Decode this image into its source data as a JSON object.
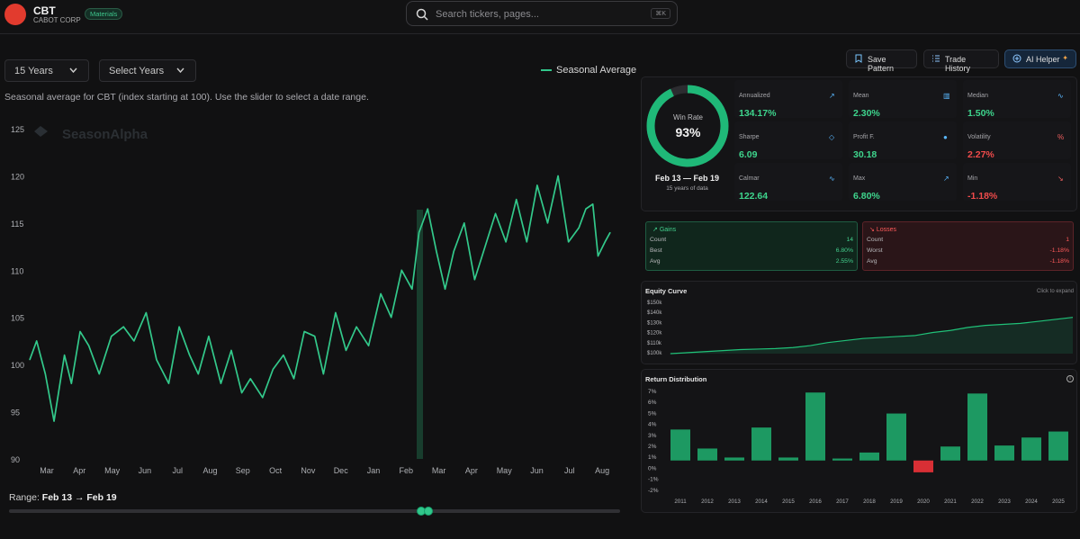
{
  "header": {
    "ticker": "CBT",
    "company": "CABOT CORP",
    "sector": "Materials",
    "search_placeholder": "Search tickers, pages...",
    "search_shortcut": "⌘K"
  },
  "controls": {
    "years_selected": "15 Years",
    "select_years": "Select Years",
    "legend": "Seasonal Average",
    "description": "Seasonal average for CBT (index starting at 100). Use the slider to select a date range."
  },
  "actions": {
    "save_pattern": "Save Pattern",
    "trade_history": "Trade History",
    "ai_helper": "AI Helper"
  },
  "chart_data": {
    "type": "line",
    "title": "Seasonal Average",
    "watermark": "SeasonAlpha",
    "xlabel": "",
    "ylabel": "",
    "ylim": [
      90,
      125
    ],
    "yticks": [
      90,
      95,
      100,
      105,
      110,
      115,
      120,
      125
    ],
    "x_ticks": [
      "Mar",
      "Apr",
      "May",
      "Jun",
      "Jul",
      "Aug",
      "Sep",
      "Oct",
      "Nov",
      "Dec",
      "Jan",
      "Feb",
      "Mar",
      "Apr",
      "May",
      "Jun",
      "Jul",
      "Aug"
    ],
    "x": [
      0,
      0.2,
      0.45,
      0.7,
      1.0,
      1.2,
      1.45,
      1.7,
      2.0,
      2.35,
      2.7,
      3.0,
      3.35,
      3.65,
      4.0,
      4.3,
      4.6,
      4.85,
      5.15,
      5.5,
      5.8,
      6.1,
      6.35,
      6.7,
      7.0,
      7.3,
      7.6,
      7.9,
      8.2,
      8.45,
      8.8,
      9.1,
      9.4,
      9.75,
      10.1,
      10.4,
      10.7,
      11.0,
      11.2,
      11.45,
      11.7,
      11.95,
      12.2,
      12.5,
      12.8,
      13.1,
      13.4,
      13.7,
      14.0,
      14.3,
      14.6,
      14.9,
      15.2,
      15.5,
      15.8,
      16.0,
      16.2,
      16.35,
      16.55,
      16.7
    ],
    "values": [
      100.5,
      102.5,
      99,
      94,
      101,
      98,
      103.5,
      102,
      99,
      103,
      104,
      102.5,
      105.5,
      100.5,
      98,
      104,
      101,
      99,
      103,
      98,
      101.5,
      97,
      98.5,
      96.5,
      99.5,
      101,
      98.5,
      103.5,
      103,
      99,
      105.5,
      101.5,
      104,
      102,
      107.5,
      105,
      110,
      108,
      114,
      116.5,
      112,
      108,
      112,
      115,
      109,
      112.5,
      116,
      113,
      117.5,
      113,
      119,
      115,
      120,
      113,
      114.5,
      116.5,
      117,
      111.5,
      113,
      114
    ],
    "highlight": "Feb 13 → Feb 19"
  },
  "range": {
    "label": "Range:",
    "value": "Feb 13 → Feb 19",
    "start_fraction": 0.675,
    "end_fraction": 0.686
  },
  "summary": {
    "win_rate_label": "Win Rate",
    "win_rate": "93%",
    "win_rate_fraction": 0.93,
    "date_range": "Feb 13 — Feb 19",
    "years_data": "15 years of data"
  },
  "metrics": [
    {
      "label": "Annualized",
      "value": "134.17%",
      "icon": "trend-up-icon",
      "color": "#3ed58d"
    },
    {
      "label": "Mean",
      "value": "2.30%",
      "icon": "bar-chart-icon",
      "color": "#3ed58d"
    },
    {
      "label": "Median",
      "value": "1.50%",
      "icon": "pulse-icon",
      "color": "#3ed58d"
    },
    {
      "label": "Sharpe",
      "value": "6.09",
      "icon": "shield-icon",
      "color": "#3ed58d"
    },
    {
      "label": "Profit F.",
      "value": "30.18",
      "icon": "target-icon",
      "color": "#3ed58d"
    },
    {
      "label": "Volatility",
      "value": "2.27%",
      "icon": "percent-icon",
      "color": "#f04b4b"
    },
    {
      "label": "Calmar",
      "value": "122.64",
      "icon": "activity-icon",
      "color": "#3ed58d"
    },
    {
      "label": "Max",
      "value": "6.80%",
      "icon": "max-trend-icon",
      "color": "#3ed58d"
    },
    {
      "label": "Min",
      "value": "-1.18%",
      "icon": "min-trend-icon",
      "color": "#f04b4b"
    }
  ],
  "gains": {
    "title": "Gains",
    "rows": [
      {
        "label": "Count",
        "value": "14"
      },
      {
        "label": "Best",
        "value": "6.80%"
      },
      {
        "label": "Avg",
        "value": "2.55%"
      }
    ]
  },
  "losses": {
    "title": "Losses",
    "rows": [
      {
        "label": "Count",
        "value": "1"
      },
      {
        "label": "Worst",
        "value": "-1.18%"
      },
      {
        "label": "Avg",
        "value": "-1.18%"
      }
    ]
  },
  "equity": {
    "title": "Equity Curve",
    "expand": "Click to expand",
    "yticks": [
      "$150k",
      "$140k",
      "$130k",
      "$120k",
      "$110k",
      "$100k"
    ],
    "chart_data": {
      "type": "area",
      "values": [
        100,
        101,
        102,
        103,
        104,
        104.5,
        105,
        106,
        108,
        111,
        113,
        115,
        116,
        117,
        118,
        121,
        123,
        126,
        128,
        129,
        130,
        132,
        134,
        136
      ],
      "ylim": [
        100,
        150
      ]
    }
  },
  "returns": {
    "title": "Return Distribution",
    "chart_data": {
      "type": "bar",
      "categories": [
        "2011",
        "2012",
        "2013",
        "2014",
        "2015",
        "2016",
        "2017",
        "2018",
        "2019",
        "2020",
        "2021",
        "2022",
        "2023",
        "2024",
        "2025"
      ],
      "values": [
        3.1,
        1.2,
        0.3,
        3.3,
        0.3,
        6.8,
        0.2,
        0.8,
        4.7,
        -1.18,
        1.4,
        6.7,
        1.5,
        2.3,
        2.9
      ],
      "ylim": [
        -2,
        7
      ],
      "yticks": [
        "7%",
        "6%",
        "5%",
        "4%",
        "3%",
        "2%",
        "1%",
        "0%",
        "-1%",
        "-2%"
      ]
    }
  },
  "colors": {
    "accent": "#31c78b",
    "loss": "#e33b3b",
    "panel": "#141416"
  }
}
